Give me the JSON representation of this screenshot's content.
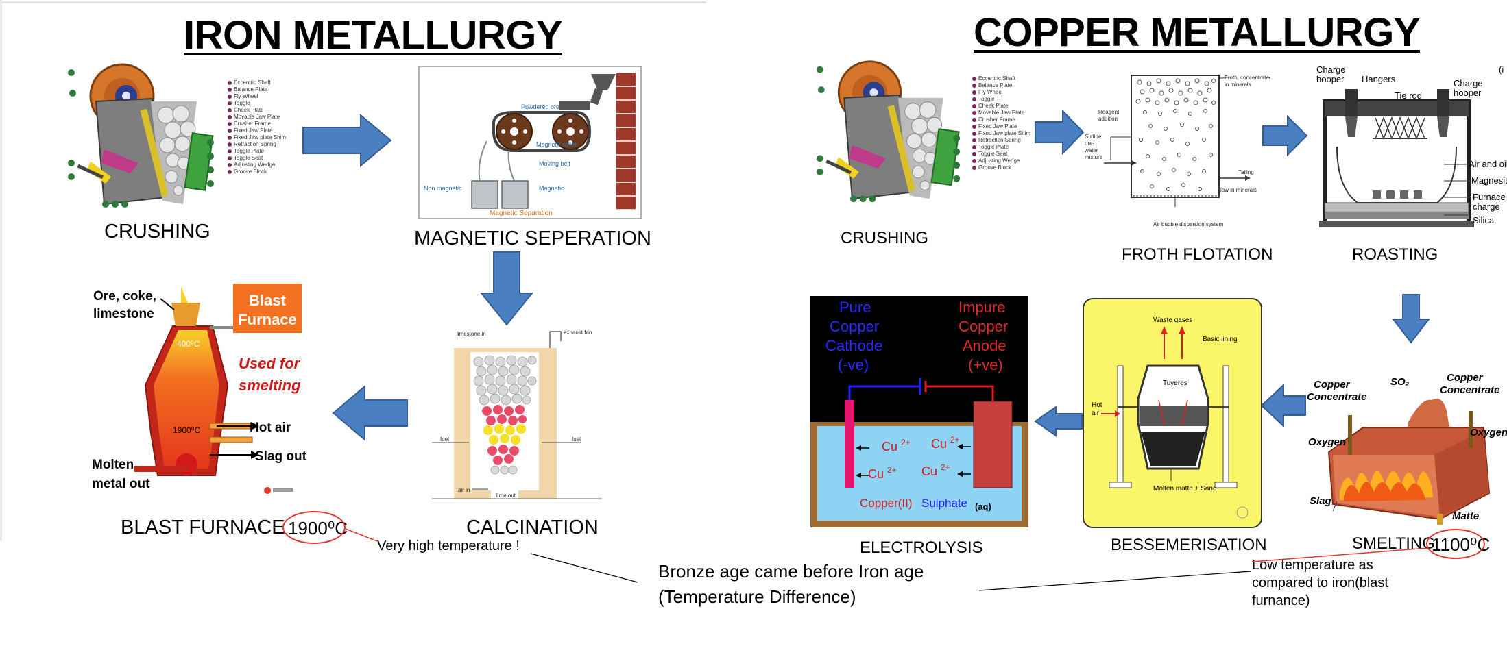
{
  "titles": {
    "iron": "IRON METALLURGY",
    "copper": "COPPER METALLURGY"
  },
  "iron": {
    "crushing": "CRUSHING",
    "magnetic": "MAGNETIC SEPERATION",
    "calcination": "CALCINATION",
    "blast_furnace": "BLAST FURNACE",
    "temperature": "1900⁰C",
    "note": "Very high temperature !",
    "crusher_parts": [
      "Eccentric Shaft",
      "Balance Plate",
      "Fly Wheel",
      "Toggle",
      "Cheek Plate",
      "Movable Jaw Plate",
      "Crusher Frame",
      "Fixed Jaw Plate",
      "Fixed Jaw plate Shim",
      "Retraction Spring",
      "Toggle Plate",
      "Toggle Seat",
      "Adjusting Wedge",
      "Groove Block"
    ],
    "magnetic_diagram": {
      "powdered_ore": "Powdered ore",
      "magnetic_roller": "Magnetic roller",
      "moving_belt": "Moving belt",
      "non_magnetic": "Non magnetic",
      "magnetic": "Magnetic",
      "caption": "Magnetic Separation"
    },
    "calcination_diagram": {
      "limestone_in": "limestone in",
      "exhaust_fan": "exhaust fan",
      "fuel_left": "fuel",
      "fuel_right": "fuel",
      "air_in": "air in",
      "lime_out": "lime out"
    },
    "furnace_diagram": {
      "ore_coke": "Ore, coke,",
      "limestone": "limestone",
      "blast": "Blast",
      "furnace": "Furnace",
      "used_for": "Used for",
      "smelting": "smelting",
      "t400": "400⁰C",
      "t1900": "1900⁰C",
      "hot_air": "Hot air",
      "slag_out": "Slag out",
      "molten_1": "Molten",
      "molten_2": "metal out"
    }
  },
  "copper": {
    "crushing": "CRUSHING",
    "froth": "FROTH FLOTATION",
    "roasting": "ROASTING",
    "electrolysis": "ELECTROLYSIS",
    "bessemerisation": "BESSEMERISATION",
    "smelting": "SMELTING",
    "temperature": "1100⁰C",
    "note_lines": [
      "Low temperature as",
      "compared to iron(blast",
      "furnance)"
    ],
    "crusher_parts": [
      "Eccentric Shaft",
      "Balance Plate",
      "Fly Wheel",
      "Toggle",
      "Cheek Plate",
      "Movable Jaw Plate",
      "Crusher Frame",
      "Fixed Jaw Plate",
      "Fixed Jaw plate Shim",
      "Retraction Spring",
      "Toggle Plate",
      "Toggle Seat",
      "Adjusting Wedge",
      "Groove Block"
    ],
    "froth_diagram": {
      "froth_conc_1": "Froth, concentrated",
      "froth_conc_2": "in minerals",
      "reagent_1": "Reagent",
      "reagent_2": "addition",
      "sulfide_1": "Sulfide",
      "sulfide_2": "ore-",
      "sulfide_3": "water",
      "sulfide_4": "mixture",
      "tailing": "Tailing",
      "low_minerals": "low in minerals",
      "air_bubble": "Air bubble dispersion system"
    },
    "roasting_diagram": {
      "charge_hooper_l1": "Charge",
      "charge_hooper_l2": "hooper",
      "hangers": "Hangers",
      "tie_rod": "Tie rod",
      "charge_hooper_r1": "Charge",
      "charge_hooper_r2": "hooper",
      "air_oil": "Air and oil",
      "magnesite": "Magnesite",
      "furnace_1": "Furnace",
      "furnace_2": "charge",
      "silica": "Silica",
      "corner": "(i"
    },
    "electrolysis_diagram": {
      "pure_1": "Pure",
      "pure_2": "Copper",
      "pure_3": "Cathode",
      "pure_4": "(-ve)",
      "impure_1": "Impure",
      "impure_2": "Copper",
      "impure_3": "Anode",
      "impure_4": "(+ve)",
      "ion": "Cu",
      "charge": "2+",
      "solution_a": "Copper(II)",
      "solution_b": "Sulphate",
      "solution_c": "(aq)"
    },
    "bessemer_diagram": {
      "waste_gases": "Waste gases",
      "basic_lining": "Basic lining",
      "tuyeres": "Tuyeres",
      "hot_air_1": "Hot",
      "hot_air_2": "air",
      "molten": "Molten matte + Sand"
    },
    "smelting_diagram": {
      "copper_conc_l1": "Copper",
      "copper_conc_l2": "Concentrate",
      "so2": "SO₂",
      "copper_conc_r1": "Copper",
      "copper_conc_r2": "Concentrate",
      "oxygen_l": "Oxygen",
      "oxygen_r": "Oxygen",
      "slag": "Slag",
      "matte": "Matte"
    }
  },
  "conclusion": {
    "line1": "Bronze age came before Iron age",
    "line2": " (Temperature Difference)"
  },
  "colors": {
    "arrow": "#4a7fc1",
    "arrow_outline": "#355f94",
    "oval": "#e0352b",
    "furnace_orange": "#f37021",
    "electrolysis_bg": "#000000",
    "solution_blue": "#8fd3f4",
    "bessemer_yellow": "#fbf56a"
  }
}
